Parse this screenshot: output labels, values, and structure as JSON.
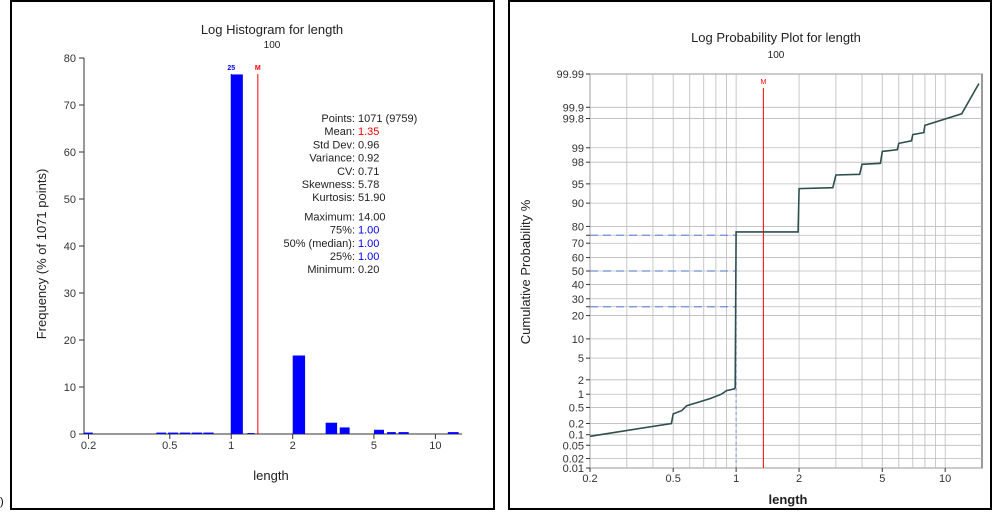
{
  "fragment": ")",
  "colors": {
    "bar": "#0000ff",
    "mean_line": "#ff0000",
    "prob_line": "#2f4f4f",
    "quartile_line": "#6f8fd8",
    "mean_text": "#ff0000",
    "quartile_text": "#0000ff",
    "axis": "#333333",
    "grid": "#bbbbbb"
  },
  "chart_data": [
    {
      "type": "bar",
      "title": "Log Histogram for length",
      "subtitle": "100",
      "xlabel": "length",
      "ylabel": "Frequency (% of 1071 points)",
      "x_scale": "log",
      "xlim": [
        0.19,
        13.5
      ],
      "ylim": [
        0,
        80
      ],
      "x_ticks": [
        0.2,
        0.5,
        1,
        2,
        5,
        10
      ],
      "x_tick_labels": [
        "0.2",
        "0.5",
        "1",
        "2",
        "5",
        "10"
      ],
      "y_ticks": [
        0,
        10,
        20,
        30,
        40,
        50,
        60,
        70,
        80
      ],
      "bars": [
        {
          "x0": 0.19,
          "x1": 0.21,
          "value": 0.3
        },
        {
          "x0": 0.43,
          "x1": 0.48,
          "value": 0.3
        },
        {
          "x0": 0.49,
          "x1": 0.55,
          "value": 0.3
        },
        {
          "x0": 0.56,
          "x1": 0.63,
          "value": 0.3
        },
        {
          "x0": 0.64,
          "x1": 0.72,
          "value": 0.3
        },
        {
          "x0": 0.73,
          "x1": 0.82,
          "value": 0.3
        },
        {
          "x0": 1.0,
          "x1": 1.14,
          "value": 76.5
        },
        {
          "x0": 1.2,
          "x1": 1.3,
          "value": 0.2
        },
        {
          "x0": 2.0,
          "x1": 2.3,
          "value": 16.7
        },
        {
          "x0": 2.9,
          "x1": 3.3,
          "value": 2.4
        },
        {
          "x0": 3.4,
          "x1": 3.8,
          "value": 1.4
        },
        {
          "x0": 5.0,
          "x1": 5.6,
          "value": 0.9
        },
        {
          "x0": 5.8,
          "x1": 6.4,
          "value": 0.4
        },
        {
          "x0": 6.6,
          "x1": 7.4,
          "value": 0.4
        },
        {
          "x0": 11.5,
          "x1": 13.0,
          "value": 0.4
        }
      ],
      "markers": [
        {
          "label": "25",
          "x": 1.0,
          "color": "#0000ff"
        },
        {
          "label": "M",
          "x": 1.35,
          "color": "#ff0000"
        }
      ],
      "stats": [
        {
          "label": "Points:",
          "value": "1071 (9759)",
          "color": "#222222"
        },
        {
          "label": "Mean:",
          "value": "1.35",
          "color": "#ff0000"
        },
        {
          "label": "Std Dev:",
          "value": "0.96",
          "color": "#222222"
        },
        {
          "label": "Variance:",
          "value": "0.92",
          "color": "#222222"
        },
        {
          "label": "CV:",
          "value": "0.71",
          "color": "#222222"
        },
        {
          "label": "Skewness:",
          "value": "5.78",
          "color": "#222222"
        },
        {
          "label": "Kurtosis:",
          "value": "51.90",
          "color": "#222222"
        },
        {
          "label": "Maximum:",
          "value": "14.00",
          "color": "#222222"
        },
        {
          "label": "75%:",
          "value": "1.00",
          "color": "#0000ff"
        },
        {
          "label": "50% (median):",
          "value": "1.00",
          "color": "#0000ff"
        },
        {
          "label": "25%:",
          "value": "1.00",
          "color": "#0000ff"
        },
        {
          "label": "Minimum:",
          "value": "0.20",
          "color": "#222222"
        }
      ]
    },
    {
      "type": "line",
      "title": "Log Probability Plot for length",
      "subtitle": "100",
      "xlabel": "length",
      "ylabel": "Cumulative Probability %",
      "x_scale": "log",
      "y_scale": "probability",
      "xlim": [
        0.2,
        15
      ],
      "ylim": [
        0.01,
        99.99
      ],
      "x_ticks": [
        0.2,
        0.5,
        1,
        2,
        5,
        10
      ],
      "x_tick_labels": [
        "0.2",
        "0.5",
        "1",
        "2",
        "5",
        "10"
      ],
      "x_grid": [
        0.2,
        0.3,
        0.4,
        0.5,
        0.6,
        0.7,
        0.8,
        0.9,
        1,
        2,
        3,
        4,
        5,
        6,
        7,
        8,
        9,
        10
      ],
      "y_ticks": [
        0.01,
        0.02,
        0.05,
        0.1,
        0.2,
        0.5,
        1,
        2,
        5,
        10,
        20,
        25,
        30,
        40,
        50,
        60,
        70,
        75,
        80,
        90,
        95,
        98,
        99,
        99.8,
        99.9,
        99.99
      ],
      "y_tick_labels": [
        "0.01",
        "0.02",
        "0.05",
        "0.1",
        "0.2",
        "0.5",
        "1",
        "2",
        "5",
        "10",
        "20",
        "",
        "30",
        "40",
        "50",
        "60",
        "70",
        "",
        "80",
        "90",
        "95",
        "98",
        "99",
        "99.8",
        "99.9",
        "99.99"
      ],
      "mean_marker": {
        "label": "M",
        "x": 1.35
      },
      "quartile_lines": [
        {
          "p": 25,
          "x": 1.0
        },
        {
          "p": 50,
          "x": 1.0
        },
        {
          "p": 75,
          "x": 1.0
        }
      ],
      "points": [
        {
          "x": 0.2,
          "y": 0.09
        },
        {
          "x": 0.49,
          "y": 0.2
        },
        {
          "x": 0.5,
          "y": 0.35
        },
        {
          "x": 0.55,
          "y": 0.42
        },
        {
          "x": 0.58,
          "y": 0.55
        },
        {
          "x": 0.65,
          "y": 0.65
        },
        {
          "x": 0.75,
          "y": 0.8
        },
        {
          "x": 0.85,
          "y": 1.0
        },
        {
          "x": 0.9,
          "y": 1.2
        },
        {
          "x": 0.98,
          "y": 1.3
        },
        {
          "x": 0.99,
          "y": 1.4
        },
        {
          "x": 1.0,
          "y": 77
        },
        {
          "x": 1.98,
          "y": 77
        },
        {
          "x": 2.0,
          "y": 94
        },
        {
          "x": 2.9,
          "y": 94.2
        },
        {
          "x": 3.0,
          "y": 96.5
        },
        {
          "x": 3.9,
          "y": 96.6
        },
        {
          "x": 4.0,
          "y": 97.8
        },
        {
          "x": 4.9,
          "y": 97.9
        },
        {
          "x": 5.0,
          "y": 98.8
        },
        {
          "x": 5.9,
          "y": 98.9
        },
        {
          "x": 6.0,
          "y": 99.2
        },
        {
          "x": 6.9,
          "y": 99.3
        },
        {
          "x": 7.0,
          "y": 99.5
        },
        {
          "x": 7.9,
          "y": 99.55
        },
        {
          "x": 8.0,
          "y": 99.7
        },
        {
          "x": 12.0,
          "y": 99.85
        },
        {
          "x": 14.5,
          "y": 99.98
        }
      ]
    }
  ]
}
